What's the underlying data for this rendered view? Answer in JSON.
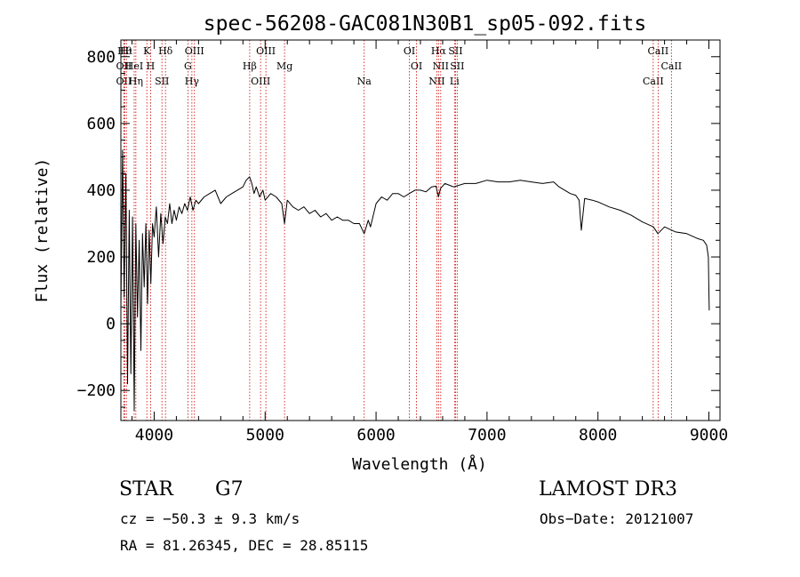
{
  "chart_data": {
    "type": "line",
    "title": "spec-56208-GAC081N30B1_sp05-092.fits",
    "xlabel": "Wavelength (Å)",
    "ylabel": "Flux (relative)",
    "xlim": [
      3700,
      9100
    ],
    "ylim": [
      -290,
      850
    ],
    "xticks": [
      4000,
      5000,
      6000,
      7000,
      8000,
      9000
    ],
    "xtick_labels": [
      "4000",
      "5000",
      "6000",
      "7000",
      "8000",
      "9000"
    ],
    "yticks": [
      -200,
      0,
      200,
      400,
      600,
      800
    ],
    "ytick_labels": [
      "−200",
      "0",
      "200",
      "400",
      "600",
      "800"
    ],
    "series": [
      {
        "name": "spectrum",
        "x": [
          3700,
          3715,
          3730,
          3745,
          3760,
          3775,
          3790,
          3805,
          3820,
          3835,
          3850,
          3865,
          3880,
          3895,
          3910,
          3925,
          3940,
          3955,
          3970,
          3985,
          4000,
          4020,
          4040,
          4060,
          4080,
          4100,
          4120,
          4140,
          4160,
          4180,
          4200,
          4225,
          4250,
          4275,
          4300,
          4325,
          4350,
          4375,
          4400,
          4450,
          4500,
          4550,
          4600,
          4650,
          4700,
          4750,
          4800,
          4830,
          4860,
          4880,
          4900,
          4920,
          4950,
          4980,
          5000,
          5050,
          5100,
          5150,
          5175,
          5200,
          5250,
          5300,
          5350,
          5400,
          5450,
          5500,
          5550,
          5600,
          5650,
          5700,
          5750,
          5800,
          5850,
          5893,
          5930,
          5950,
          6000,
          6050,
          6100,
          6150,
          6200,
          6250,
          6300,
          6350,
          6400,
          6450,
          6500,
          6540,
          6563,
          6580,
          6620,
          6700,
          6800,
          6900,
          7000,
          7100,
          7200,
          7300,
          7400,
          7500,
          7600,
          7650,
          7700,
          7750,
          7800,
          7830,
          7850,
          7880,
          7950,
          8000,
          8100,
          8200,
          8300,
          8400,
          8500,
          8540,
          8600,
          8700,
          8800,
          8900,
          8950,
          8980,
          8995,
          9000,
          9003
        ],
        "y": [
          40,
          520,
          80,
          450,
          -180,
          340,
          -150,
          320,
          -260,
          300,
          20,
          250,
          -80,
          270,
          110,
          300,
          60,
          280,
          120,
          300,
          260,
          350,
          200,
          330,
          240,
          320,
          300,
          360,
          300,
          340,
          310,
          350,
          330,
          360,
          340,
          380,
          340,
          370,
          360,
          380,
          390,
          400,
          360,
          380,
          390,
          400,
          410,
          430,
          440,
          420,
          390,
          410,
          380,
          400,
          370,
          390,
          380,
          360,
          300,
          370,
          350,
          340,
          350,
          330,
          340,
          320,
          330,
          310,
          320,
          310,
          310,
          300,
          300,
          270,
          310,
          290,
          360,
          380,
          370,
          390,
          390,
          380,
          390,
          400,
          400,
          395,
          410,
          412,
          380,
          405,
          420,
          410,
          420,
          420,
          430,
          425,
          425,
          430,
          425,
          420,
          425,
          410,
          400,
          390,
          385,
          370,
          280,
          375,
          370,
          365,
          350,
          340,
          325,
          305,
          290,
          270,
          290,
          275,
          270,
          255,
          250,
          235,
          200,
          100,
          40
        ],
        "color": "#000000"
      }
    ],
    "lines": [
      {
        "x": 3734,
        "label": "Hθ"
      },
      {
        "x": 3727,
        "label": "OII"
      },
      {
        "x": 3727,
        "label": "OII"
      },
      {
        "x": 3750,
        "label": "Hι"
      },
      {
        "x": 3820,
        "label": "HeI"
      },
      {
        "x": 3835,
        "label": "Hη"
      },
      {
        "x": 3934,
        "label": "K"
      },
      {
        "x": 3968,
        "label": "H"
      },
      {
        "x": 4070,
        "label": "SII"
      },
      {
        "x": 4102,
        "label": "Hδ"
      },
      {
        "x": 4304,
        "label": "G"
      },
      {
        "x": 4340,
        "label": "Hγ"
      },
      {
        "x": 4363,
        "label": "OIII"
      },
      {
        "x": 4861,
        "label": "Hβ"
      },
      {
        "x": 4959,
        "label": "OIII"
      },
      {
        "x": 5007,
        "label": "OIII"
      },
      {
        "x": 5175,
        "label": "Mg"
      },
      {
        "x": 5893,
        "label": "Na"
      },
      {
        "x": 6300,
        "label": "OI"
      },
      {
        "x": 6364,
        "label": "OI"
      },
      {
        "x": 6548,
        "label": "NII"
      },
      {
        "x": 6563,
        "label": "Hα"
      },
      {
        "x": 6583,
        "label": "NII"
      },
      {
        "x": 6707,
        "label": "Li"
      },
      {
        "x": 6716,
        "label": "SII"
      },
      {
        "x": 6731,
        "label": "SII"
      },
      {
        "x": 8498,
        "label": "CaII"
      },
      {
        "x": 8542,
        "label": "CaII"
      },
      {
        "x": 8662,
        "label": "CaII"
      }
    ]
  },
  "info": {
    "class_label": "STAR",
    "subclass": "G7",
    "survey": "LAMOST DR3",
    "cz": "cz = −50.3 ± 9.3 km/s",
    "obs_date": "Obs−Date: 20121007",
    "coords": "RA =  81.26345, DEC =  28.85115"
  }
}
